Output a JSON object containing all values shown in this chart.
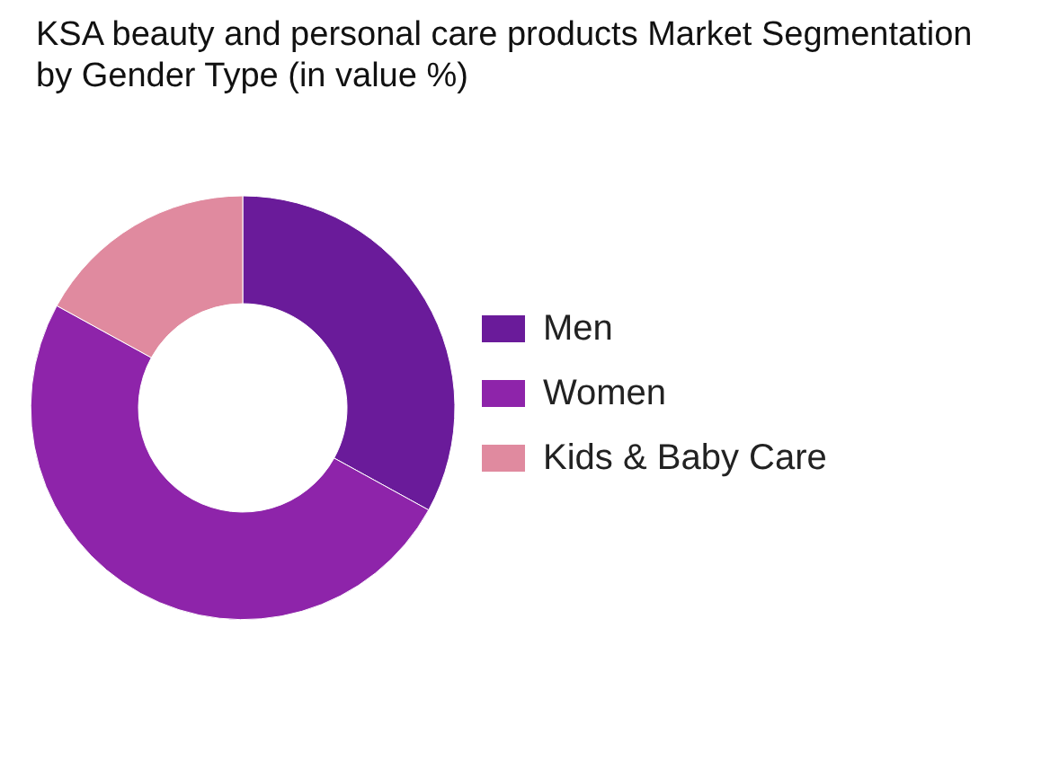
{
  "chart_data": {
    "type": "donut",
    "title": "KSA beauty and personal care products Market Segmentation by Gender Type (in value %)",
    "categories": [
      "Men",
      "Women",
      "Kids & Baby Care"
    ],
    "values": [
      33,
      50,
      17
    ],
    "colors": [
      "#6a1b9a",
      "#8e24aa",
      "#e08a9f"
    ],
    "legend": "right"
  }
}
